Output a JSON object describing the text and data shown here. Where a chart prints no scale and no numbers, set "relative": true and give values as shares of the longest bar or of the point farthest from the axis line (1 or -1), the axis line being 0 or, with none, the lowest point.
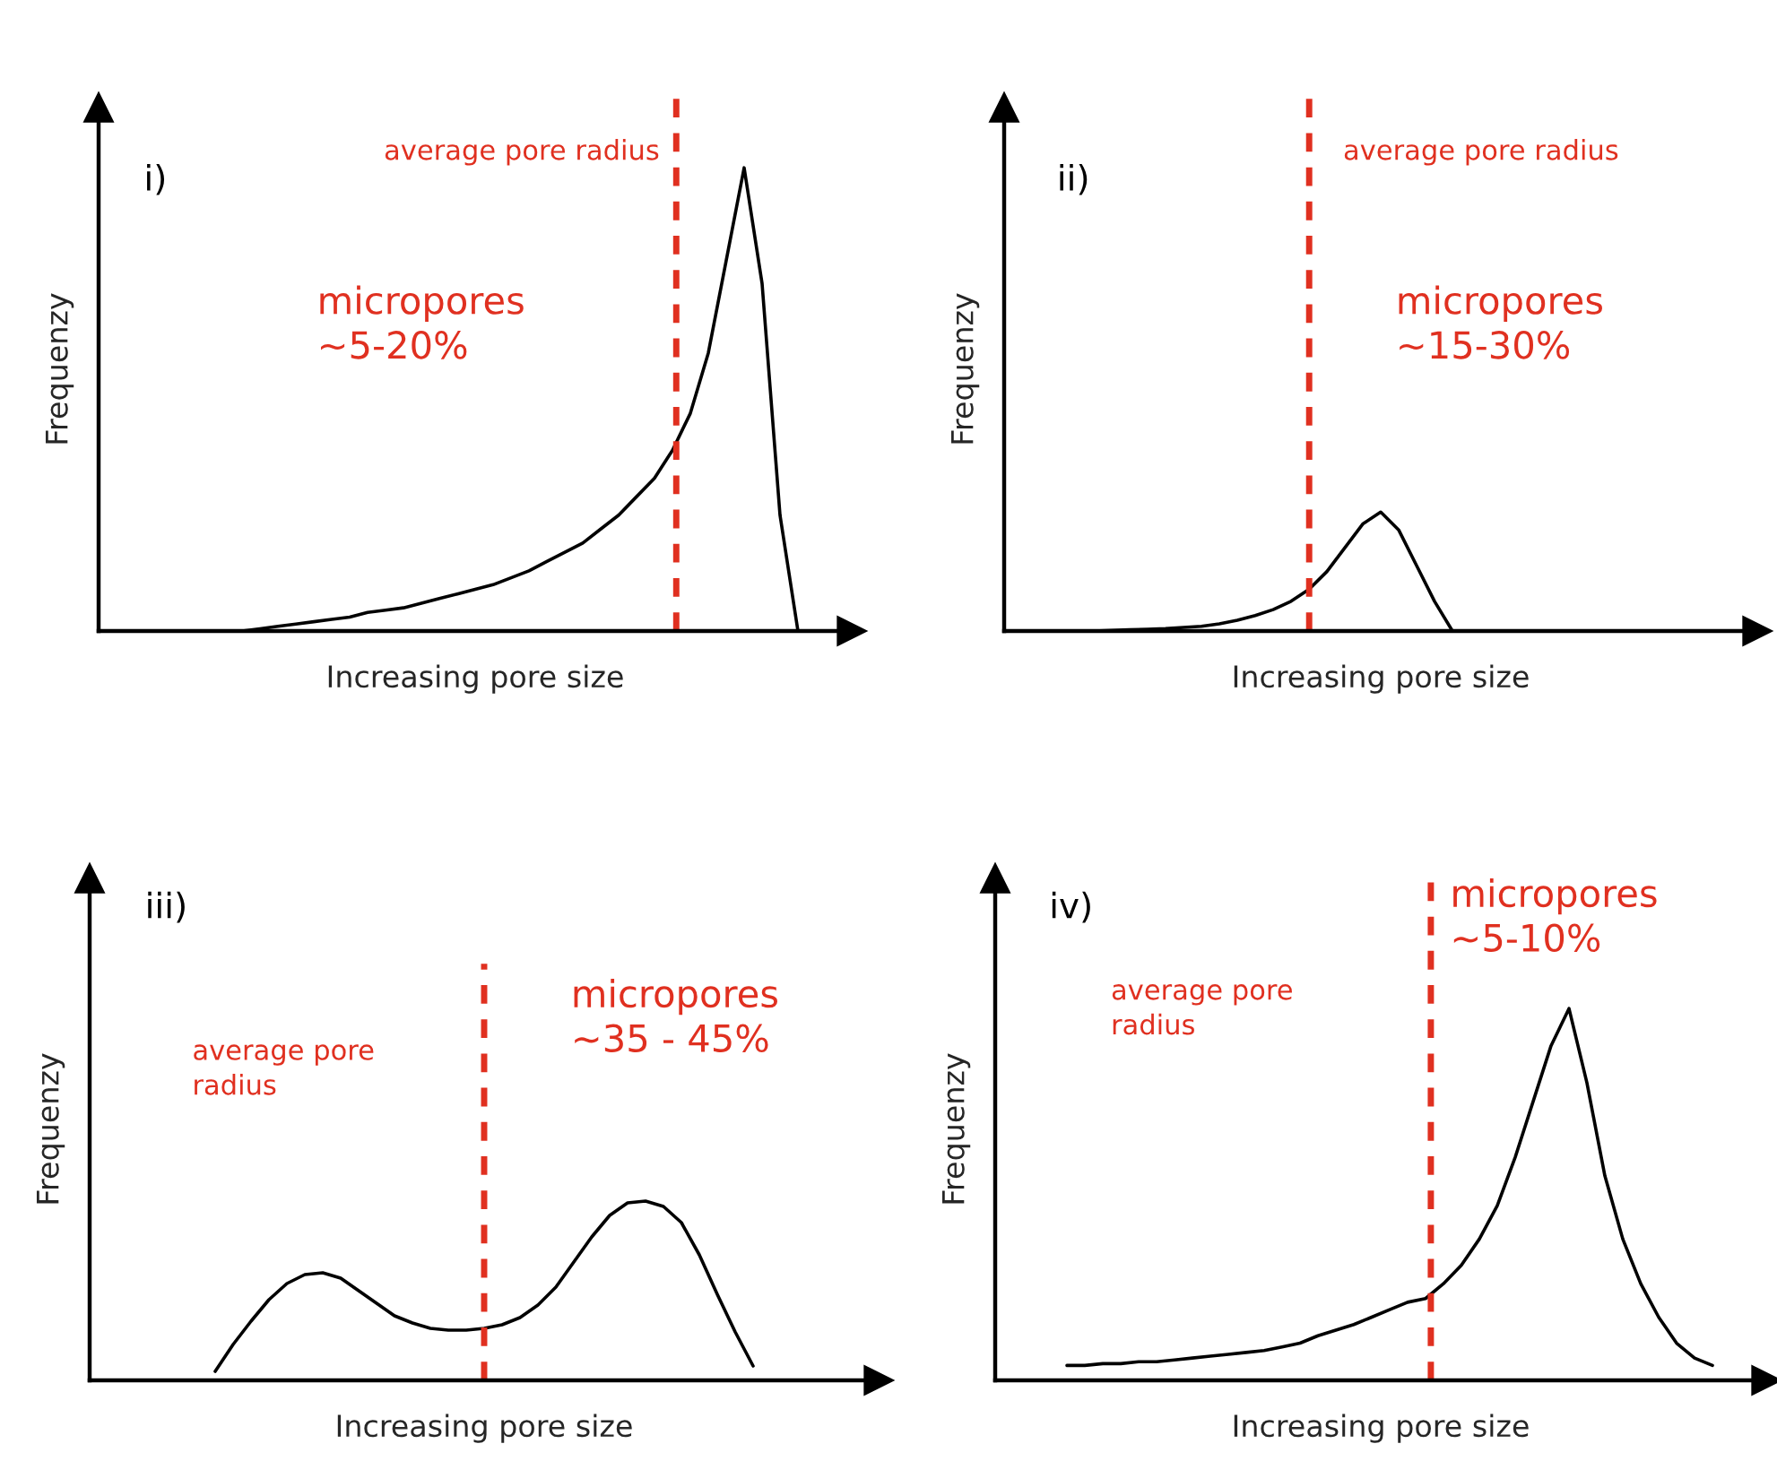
{
  "chart_data": [
    {
      "type": "line",
      "relative": true,
      "xlabel": "Increasing pore size",
      "ylabel": "Frequenzy",
      "legend": false,
      "marker": "none",
      "line_style": "solid",
      "categories": [
        null,
        null,
        null,
        null,
        null,
        null,
        null,
        null,
        null,
        null,
        null,
        null,
        null,
        null,
        null,
        null,
        null,
        null,
        null,
        null,
        null,
        null,
        null,
        null,
        null,
        null,
        null,
        null,
        null,
        null,
        null,
        null,
        null,
        null,
        null,
        null,
        null,
        null,
        null,
        null,
        null,
        null,
        null
      ],
      "series": [
        {
          "color": "#000000",
          "values": [
            null,
            null,
            null,
            null,
            null,
            null,
            null,
            null,
            0,
            0.005,
            0.01,
            0.015,
            0.02,
            0.025,
            0.03,
            0.04,
            0.045,
            0.05,
            0.06,
            0.07,
            0.08,
            0.09,
            0.1,
            0.115,
            0.13,
            0.15,
            0.17,
            0.19,
            0.22,
            0.25,
            0.29,
            0.33,
            0.39,
            0.47,
            0.6,
            0.8,
            1.0,
            0.75,
            0.25,
            0,
            null,
            null,
            null
          ]
        }
      ],
      "annotations": [
        "i)",
        "average pore radius",
        "micropores\n~5-20%"
      ]
    },
    {
      "type": "line",
      "relative": true,
      "xlabel": "Increasing pore size",
      "ylabel": "Frequenzy",
      "legend": false,
      "marker": "none",
      "line_style": "solid",
      "categories": [
        null,
        null,
        null,
        null,
        null,
        null,
        null,
        null,
        null,
        null,
        null,
        null,
        null,
        null,
        null,
        null,
        null,
        null,
        null,
        null,
        null,
        null,
        null,
        null,
        null,
        null,
        null,
        null,
        null,
        null,
        null,
        null,
        null,
        null,
        null,
        null,
        null,
        null,
        null,
        null,
        null,
        null,
        null
      ],
      "series": [
        {
          "color": "#000000",
          "values": [
            null,
            null,
            null,
            null,
            null,
            0,
            0.005,
            0.01,
            0.015,
            0.02,
            0.03,
            0.04,
            0.06,
            0.09,
            0.13,
            0.18,
            0.25,
            0.35,
            0.5,
            0.7,
            0.9,
            1.0,
            0.85,
            0.55,
            0.25,
            0,
            null,
            null,
            null,
            null,
            null,
            null,
            null,
            null,
            null,
            null,
            null,
            null,
            null,
            null,
            null,
            null,
            null
          ]
        }
      ],
      "annotations": [
        "ii)",
        "average pore radius",
        "micropores\n~15-30%"
      ]
    },
    {
      "type": "line",
      "relative": true,
      "xlabel": "Increasing pore size",
      "ylabel": "Frequenzy",
      "legend": false,
      "marker": "none",
      "line_style": "solid",
      "categories": [
        null,
        null,
        null,
        null,
        null,
        null,
        null,
        null,
        null,
        null,
        null,
        null,
        null,
        null,
        null,
        null,
        null,
        null,
        null,
        null,
        null,
        null,
        null,
        null,
        null,
        null,
        null,
        null,
        null,
        null,
        null,
        null,
        null,
        null,
        null,
        null,
        null,
        null,
        null,
        null,
        null,
        null,
        null,
        null,
        null
      ],
      "series": [
        {
          "color": "#000000",
          "values": [
            null,
            null,
            null,
            null,
            null,
            null,
            null,
            0.05,
            0.2,
            0.33,
            0.45,
            0.54,
            0.59,
            0.6,
            0.57,
            0.5,
            0.43,
            0.36,
            0.32,
            0.29,
            0.28,
            0.28,
            0.29,
            0.31,
            0.35,
            0.42,
            0.52,
            0.66,
            0.8,
            0.92,
            0.99,
            1.0,
            0.97,
            0.88,
            0.7,
            0.48,
            0.27,
            0.08,
            null,
            null,
            null,
            null,
            null,
            null,
            null
          ]
        }
      ],
      "annotations": [
        "iii)",
        "average pore\nradius",
        "micropores\n~35 - 45%"
      ]
    },
    {
      "type": "line",
      "relative": true,
      "xlabel": "Increasing pore size",
      "ylabel": "Frequenzy",
      "legend": false,
      "marker": "none",
      "line_style": "solid",
      "categories": [
        null,
        null,
        null,
        null,
        null,
        null,
        null,
        null,
        null,
        null,
        null,
        null,
        null,
        null,
        null,
        null,
        null,
        null,
        null,
        null,
        null,
        null,
        null,
        null,
        null,
        null,
        null,
        null,
        null,
        null,
        null,
        null,
        null,
        null,
        null,
        null,
        null,
        null,
        null,
        null,
        null,
        null,
        null,
        null
      ],
      "series": [
        {
          "color": "#000000",
          "values": [
            null,
            null,
            null,
            null,
            0.04,
            0.04,
            0.045,
            0.045,
            0.05,
            0.05,
            0.055,
            0.06,
            0.065,
            0.07,
            0.075,
            0.08,
            0.09,
            0.1,
            0.12,
            0.135,
            0.15,
            0.17,
            0.19,
            0.21,
            0.22,
            0.26,
            0.31,
            0.38,
            0.47,
            0.6,
            0.75,
            0.9,
            1.0,
            0.8,
            0.55,
            0.38,
            0.26,
            0.17,
            0.1,
            0.06,
            0.04,
            null,
            null,
            null
          ]
        }
      ],
      "annotations": [
        "iv)",
        "average pore\nradius",
        "micropores\n~5-10%"
      ]
    }
  ]
}
